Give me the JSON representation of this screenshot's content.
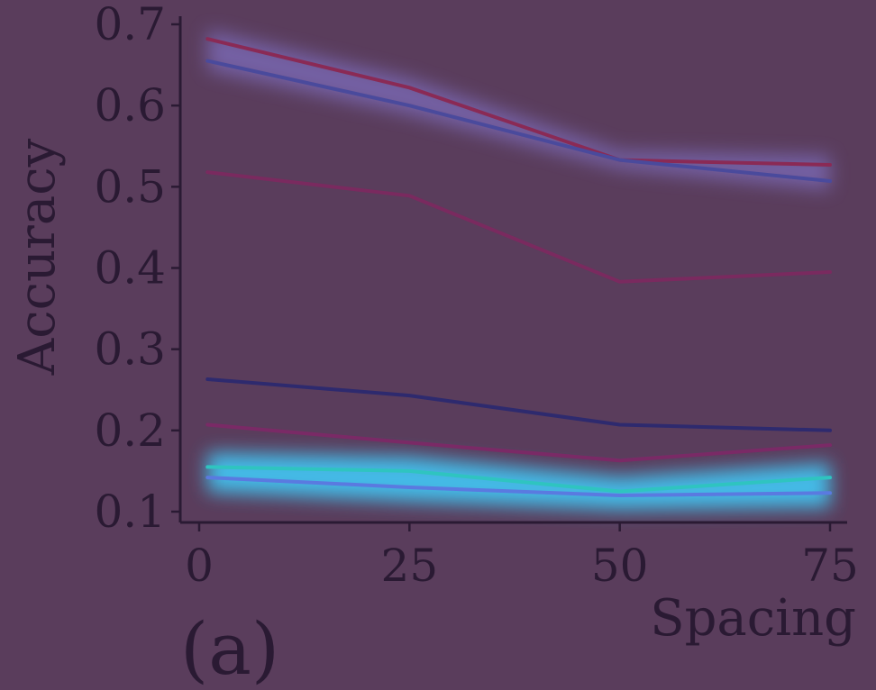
{
  "chart_data": {
    "type": "line",
    "xlabel": "Spacing",
    "ylabel": "Accuracy",
    "panel_label": "(a)",
    "x": [
      1,
      25,
      50,
      75
    ],
    "xticks": [
      0,
      25,
      50,
      75
    ],
    "xtick_labels": [
      "0",
      "25",
      "50",
      "75"
    ],
    "yticks": [
      0.1,
      0.2,
      0.3,
      0.4,
      0.5,
      0.6,
      0.7
    ],
    "ytick_labels": [
      "0.1",
      "0.2",
      "0.3",
      "0.4",
      "0.5",
      "0.6",
      "0.7"
    ],
    "xlim": [
      0,
      75
    ],
    "ylim": [
      0.1,
      0.7
    ],
    "grid": false,
    "series": [
      {
        "values": [
          0.682,
          0.622,
          0.533,
          0.527
        ],
        "color": "#8a2a55"
      },
      {
        "values": [
          0.655,
          0.6,
          0.533,
          0.507
        ],
        "color": "#4a4a9c"
      },
      {
        "values": [
          0.518,
          0.489,
          0.383,
          0.395
        ],
        "color": "#7a2a5f"
      },
      {
        "values": [
          0.263,
          0.243,
          0.207,
          0.2
        ],
        "color": "#2e2a6e"
      },
      {
        "values": [
          0.207,
          0.185,
          0.163,
          0.182
        ],
        "color": "#7a2a66"
      },
      {
        "values": [
          0.155,
          0.15,
          0.125,
          0.142
        ],
        "color": "#2fc4c0"
      },
      {
        "values": [
          0.142,
          0.13,
          0.12,
          0.123
        ],
        "color": "#5a7ae0"
      }
    ]
  }
}
